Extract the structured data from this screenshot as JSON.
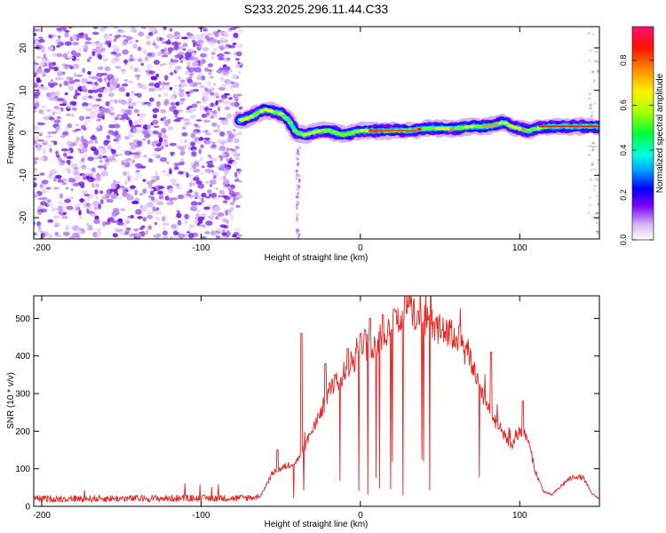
{
  "title": "S233.2025.296.11.44.C33",
  "colors": {
    "scatter_purple": "#8a2be2",
    "snr_line": "#e8221f",
    "frame": "#000000"
  },
  "chart_data": [
    {
      "type": "heatmap",
      "name": "spectrogram",
      "xlabel": "Height of straight line (km)",
      "ylabel": "Frequency (Hz)",
      "xlim": [
        -205,
        150
      ],
      "ylim": [
        -25,
        25
      ],
      "xticks": [
        -200,
        -100,
        0,
        100
      ],
      "yticks": [
        -20,
        -10,
        0,
        10,
        20
      ],
      "noise_region_x": [
        -205,
        -75
      ],
      "ridge": {
        "x": [
          -75,
          -70,
          -65,
          -60,
          -55,
          -50,
          -45,
          -42,
          -40,
          -35,
          -30,
          -25,
          -20,
          -15,
          -10,
          -5,
          0,
          10,
          20,
          30,
          40,
          50,
          60,
          70,
          80,
          85,
          90,
          95,
          100,
          105,
          110,
          120,
          130,
          140,
          150
        ],
        "freq": [
          3,
          3.5,
          4.5,
          5.5,
          5,
          4.5,
          3,
          1,
          0,
          -0.5,
          0,
          0.5,
          0.5,
          0,
          -0.5,
          0,
          0.5,
          0.5,
          0.5,
          0.5,
          1,
          1,
          1,
          1.5,
          1.5,
          2,
          2.5,
          1.5,
          1,
          0.5,
          1,
          1.5,
          1.5,
          1.5,
          1.5
        ]
      },
      "colorbar": {
        "label": "Normalized spectral amplitude",
        "range": [
          0,
          0.95
        ],
        "ticks": [
          0.0,
          0.2,
          0.4,
          0.6,
          0.8
        ],
        "tick_labels": [
          "0.0",
          "0.2",
          "0.4",
          "0.6",
          "0.8"
        ]
      }
    },
    {
      "type": "line",
      "name": "snr",
      "xlabel": "Height of straight line (km)",
      "ylabel": "SNR (10 * v/v)",
      "xlim": [
        -205,
        150
      ],
      "ylim": [
        0,
        560
      ],
      "xticks": [
        -200,
        -100,
        0,
        100
      ],
      "yticks": [
        0,
        100,
        200,
        300,
        400,
        500
      ],
      "envelope": {
        "x": [
          -205,
          -75,
          -63,
          -55,
          -45,
          -40,
          -30,
          -20,
          -10,
          0,
          10,
          20,
          30,
          40,
          50,
          60,
          70,
          75,
          80,
          90,
          95,
          100,
          105,
          110,
          115,
          120,
          125,
          130,
          135,
          140,
          145,
          150
        ],
        "snr": [
          20,
          22,
          25,
          90,
          110,
          120,
          200,
          300,
          360,
          410,
          440,
          480,
          520,
          500,
          470,
          450,
          380,
          320,
          260,
          190,
          160,
          200,
          180,
          90,
          40,
          30,
          50,
          70,
          80,
          75,
          35,
          20
        ]
      },
      "peaks": {
        "x": [
          -65,
          -52,
          -37,
          -22,
          -16,
          -8,
          0,
          3,
          6,
          14,
          21,
          28,
          30,
          36,
          46,
          51,
          62,
          82,
          102
        ],
        "snr": [
          210,
          150,
          460,
          380,
          350,
          420,
          460,
          470,
          500,
          510,
          525,
          560,
          530,
          520,
          490,
          470,
          480,
          410,
          280
        ]
      }
    }
  ]
}
